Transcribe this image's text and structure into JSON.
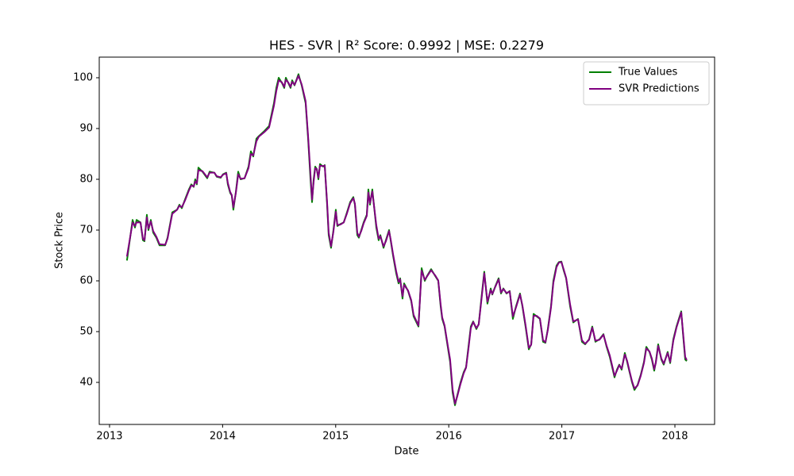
{
  "chart_data": {
    "type": "line",
    "title": "HES - SVR | R² Score: 0.9992 | MSE: 0.2279",
    "x_label": "Date",
    "y_label": "Stock Price",
    "xlim": [
      2012.909,
      2018.351
    ],
    "ylim": [
      31.72,
      104.06
    ],
    "xticks": [
      2013,
      2014,
      2015,
      2016,
      2017,
      2018
    ],
    "yticks": [
      40,
      50,
      60,
      70,
      80,
      90,
      100
    ],
    "grid": false,
    "legend": "upper right",
    "x": [
      2013.154,
      2013.204,
      2013.225,
      2013.239,
      2013.274,
      2013.295,
      2013.309,
      2013.33,
      2013.344,
      2013.365,
      2013.386,
      2013.414,
      2013.442,
      2013.492,
      2013.513,
      2013.534,
      2013.555,
      2013.597,
      2013.618,
      2013.639,
      2013.667,
      2013.702,
      2013.723,
      2013.744,
      2013.758,
      2013.772,
      2013.786,
      2013.822,
      2013.864,
      2013.885,
      2013.927,
      2013.948,
      2013.983,
      2014.004,
      2014.032,
      2014.046,
      2014.067,
      2014.081,
      2014.095,
      2014.117,
      2014.138,
      2014.159,
      2014.194,
      2014.229,
      2014.25,
      2014.271,
      2014.299,
      2014.32,
      2014.369,
      2014.411,
      2014.454,
      2014.475,
      2014.496,
      2014.524,
      2014.545,
      2014.559,
      2014.58,
      2014.601,
      2014.615,
      2014.636,
      2014.671,
      2014.699,
      2014.734,
      2014.756,
      2014.777,
      2014.791,
      2014.805,
      2014.819,
      2014.833,
      2014.847,
      2014.861,
      2014.889,
      2014.903,
      2014.924,
      2014.938,
      2014.959,
      2014.98,
      2015.001,
      2015.015,
      2015.043,
      2015.071,
      2015.1,
      2015.128,
      2015.156,
      2015.17,
      2015.191,
      2015.205,
      2015.226,
      2015.247,
      2015.275,
      2015.289,
      2015.303,
      2015.324,
      2015.359,
      2015.38,
      2015.395,
      2015.423,
      2015.444,
      2015.472,
      2015.486,
      2015.507,
      2015.535,
      2015.556,
      2015.57,
      2015.591,
      2015.605,
      2015.64,
      2015.668,
      2015.689,
      2015.732,
      2015.76,
      2015.788,
      2015.809,
      2015.844,
      2015.879,
      2015.907,
      2015.928,
      2015.942,
      2015.963,
      2015.991,
      2016.012,
      2016.034,
      2016.055,
      2016.076,
      2016.104,
      2016.132,
      2016.153,
      2016.174,
      2016.195,
      2016.216,
      2016.244,
      2016.265,
      2016.293,
      2016.314,
      2016.342,
      2016.371,
      2016.385,
      2016.413,
      2016.441,
      2016.462,
      2016.483,
      2016.511,
      2016.539,
      2016.567,
      2016.595,
      2016.63,
      2016.651,
      2016.679,
      2016.708,
      2016.729,
      2016.75,
      2016.778,
      2016.806,
      2016.834,
      2016.855,
      2016.876,
      2016.904,
      2016.925,
      2016.953,
      2016.974,
      2016.996,
      2017.017,
      2017.038,
      2017.073,
      2017.101,
      2017.143,
      2017.178,
      2017.206,
      2017.241,
      2017.269,
      2017.297,
      2017.333,
      2017.368,
      2017.396,
      2017.424,
      2017.445,
      2017.466,
      2017.487,
      2017.508,
      2017.529,
      2017.557,
      2017.578,
      2017.599,
      2017.621,
      2017.642,
      2017.67,
      2017.698,
      2017.726,
      2017.747,
      2017.775,
      2017.796,
      2017.817,
      2017.831,
      2017.852,
      2017.88,
      2017.901,
      2017.936,
      2017.958,
      2017.986,
      2018.014,
      2018.042,
      2018.056,
      2018.07,
      2018.091,
      2018.105
    ],
    "series": [
      {
        "name": "True Values",
        "color": "green",
        "values": [
          64,
          72,
          70.5,
          72,
          71.5,
          68,
          67.8,
          73,
          70,
          72,
          69.5,
          68.5,
          67,
          67,
          68.5,
          71,
          73.5,
          74,
          75,
          74.3,
          76,
          78,
          79,
          78.5,
          80,
          79,
          82.3,
          81.5,
          80.2,
          81.5,
          81.3,
          80.5,
          80.3,
          81,
          81.3,
          79,
          77.3,
          76.8,
          74,
          77.5,
          81.5,
          80,
          80.2,
          82.5,
          85.5,
          84.5,
          88,
          88.5,
          89.5,
          90.5,
          95,
          98,
          100,
          99,
          98,
          100,
          99,
          98,
          99.5,
          98.5,
          100.7,
          98.5,
          95,
          88,
          80,
          75.5,
          80,
          82.5,
          82,
          80,
          83,
          82.5,
          82.8,
          75,
          69,
          66.5,
          70,
          74,
          70.8,
          71.2,
          71.5,
          73.5,
          75.5,
          76.5,
          75,
          69,
          68.5,
          70,
          71.5,
          73,
          78,
          75,
          78,
          70.5,
          68,
          69,
          66.5,
          68,
          70,
          68,
          65,
          61.5,
          59.5,
          60.5,
          56.5,
          59.5,
          58,
          56,
          53,
          51,
          62.5,
          60,
          61,
          62.3,
          61,
          60,
          55,
          52.5,
          51,
          47,
          44,
          38,
          35.5,
          37.5,
          40,
          42,
          43,
          47,
          51,
          52,
          50.5,
          51.5,
          57.5,
          61.8,
          55.5,
          58.5,
          57.3,
          59,
          60.5,
          57.5,
          58.5,
          57.5,
          58,
          52.5,
          55,
          57.5,
          55,
          51,
          46.5,
          47.5,
          53.5,
          53,
          52.5,
          48,
          47.8,
          50.5,
          55,
          60,
          63,
          63.7,
          63.8,
          62,
          60.5,
          55,
          51.8,
          52.5,
          48,
          47.5,
          48.5,
          51,
          48,
          48.5,
          49.5,
          47,
          45,
          43,
          41,
          42.5,
          43.5,
          42.5,
          45.8,
          44,
          42,
          40,
          38.5,
          39.5,
          41.5,
          44,
          47,
          46,
          44.5,
          42.3,
          44,
          47.5,
          44.5,
          43.5,
          46,
          43.8,
          48.5,
          51,
          53,
          54,
          50,
          44.5,
          44.2
        ]
      },
      {
        "name": "SVR Predictions",
        "color": "purple",
        "values": [
          64.8,
          71.5,
          70.8,
          71.5,
          71.5,
          68.3,
          68,
          72.5,
          70.3,
          71.7,
          69.8,
          68.7,
          67.2,
          67.1,
          68.3,
          70.8,
          73.2,
          74,
          74.8,
          74.5,
          75.8,
          77.8,
          78.8,
          78.6,
          79.6,
          79.2,
          81.8,
          81.6,
          80.4,
          81.3,
          81.3,
          80.6,
          80.4,
          80.9,
          81.2,
          79.3,
          77.5,
          76.9,
          74.5,
          77.3,
          81,
          80.1,
          80.2,
          82.2,
          85,
          84.7,
          87.5,
          88.4,
          89.3,
          90.2,
          94.5,
          97.4,
          99.5,
          99.1,
          98.2,
          99.6,
          99.1,
          98.2,
          99.2,
          98.6,
          100.4,
          98.7,
          95.4,
          88.5,
          81,
          76,
          79.5,
          82.2,
          82,
          80.3,
          82.7,
          82.6,
          82.7,
          75.5,
          69.5,
          66.8,
          69.7,
          73.6,
          71,
          71.1,
          71.5,
          73.3,
          75.3,
          76.3,
          75.2,
          69.5,
          68.7,
          69.8,
          71.3,
          72.8,
          77.4,
          75.3,
          77.6,
          71,
          68.3,
          68.8,
          66.8,
          67.8,
          69.8,
          68.2,
          65.3,
          61.9,
          59.8,
          60.3,
          57,
          59.2,
          58.1,
          56.2,
          53.3,
          51.2,
          62,
          60.2,
          60.9,
          62.1,
          61.1,
          60.1,
          55.4,
          52.8,
          51.2,
          47.3,
          44.5,
          38.6,
          35.8,
          37.3,
          39.7,
          41.8,
          42.9,
          46.6,
          50.7,
          51.9,
          50.7,
          51.4,
          57.1,
          61.5,
          55.9,
          58.2,
          57.4,
          58.9,
          60.3,
          57.7,
          58.4,
          57.6,
          57.9,
          53,
          54.8,
          57.3,
          55.2,
          51.3,
          46.8,
          47.4,
          53.1,
          53.1,
          52.6,
          48.3,
          47.9,
          50.3,
          54.7,
          59.6,
          62.7,
          63.6,
          63.7,
          62.2,
          60.6,
          55.4,
          52,
          52.4,
          48.3,
          47.6,
          48.4,
          50.8,
          48.2,
          48.4,
          49.4,
          47.2,
          45.3,
          43.3,
          41.3,
          42.3,
          43.4,
          42.7,
          45.5,
          44.2,
          42.2,
          40.2,
          38.8,
          39.4,
          41.3,
          43.8,
          46.7,
          46.1,
          44.7,
          42.6,
          43.8,
          47.2,
          44.7,
          43.7,
          45.8,
          44,
          48.2,
          50.8,
          52.8,
          53.8,
          50.3,
          45,
          44.4
        ]
      }
    ]
  }
}
